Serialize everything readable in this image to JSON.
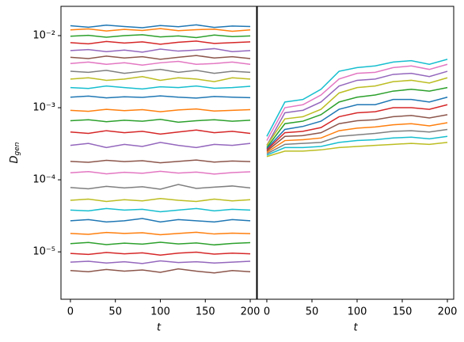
{
  "chart_data": [
    {
      "type": "line",
      "ylabel": "Dgen",
      "xlabel": "t",
      "log_y": true,
      "xlim": [
        -10.5,
        207
      ],
      "ylim": [
        2.2e-06,
        0.0255
      ],
      "xticks": [
        0,
        50,
        100,
        150,
        200
      ],
      "yticks": [
        {
          "value": 1e-05,
          "label": "10⁻⁵"
        },
        {
          "value": 0.0001,
          "label": "10⁻⁴"
        },
        {
          "value": 0.001,
          "label": "10⁻³"
        },
        {
          "value": 0.01,
          "label": "10⁻²"
        }
      ],
      "x": [
        0,
        20,
        40,
        60,
        80,
        100,
        120,
        140,
        160,
        180,
        200
      ],
      "series": [
        {
          "color": "#1f77b4",
          "values": [
            0.0137,
            0.0131,
            0.014,
            0.0134,
            0.0129,
            0.0138,
            0.0133,
            0.0141,
            0.013,
            0.0136,
            0.0134
          ]
        },
        {
          "color": "#ff7f0e",
          "values": [
            0.012,
            0.0124,
            0.0116,
            0.0122,
            0.0118,
            0.0125,
            0.0117,
            0.0121,
            0.0123,
            0.0115,
            0.012
          ]
        },
        {
          "color": "#2ca02c",
          "values": [
            0.0098,
            0.0101,
            0.0095,
            0.01,
            0.0103,
            0.0096,
            0.0099,
            0.0094,
            0.0102,
            0.0097,
            0.0099
          ]
        },
        {
          "color": "#d62728",
          "values": [
            0.008,
            0.0077,
            0.0083,
            0.0079,
            0.0082,
            0.0076,
            0.0081,
            0.0084,
            0.0078,
            0.008,
            0.0082
          ]
        },
        {
          "color": "#9467bd",
          "values": [
            0.0062,
            0.0064,
            0.006,
            0.0063,
            0.0059,
            0.0065,
            0.0061,
            0.0063,
            0.0066,
            0.006,
            0.0062
          ]
        },
        {
          "color": "#8c564b",
          "values": [
            0.005,
            0.0048,
            0.0052,
            0.0049,
            0.0051,
            0.0047,
            0.005,
            0.0053,
            0.0049,
            0.0051,
            0.0048
          ]
        },
        {
          "color": "#e377c2",
          "values": [
            0.0041,
            0.0043,
            0.004,
            0.0042,
            0.0039,
            0.0042,
            0.0044,
            0.004,
            0.0041,
            0.0043,
            0.004
          ]
        },
        {
          "color": "#7f7f7f",
          "values": [
            0.0032,
            0.0031,
            0.0033,
            0.003,
            0.0032,
            0.0034,
            0.0031,
            0.0033,
            0.003,
            0.0032,
            0.0031
          ]
        },
        {
          "color": "#bcbd22",
          "values": [
            0.0025,
            0.0026,
            0.0024,
            0.0025,
            0.0027,
            0.0024,
            0.0026,
            0.0025,
            0.0023,
            0.0026,
            0.0025
          ]
        },
        {
          "color": "#17becf",
          "values": [
            0.0019,
            0.00185,
            0.002,
            0.0019,
            0.00182,
            0.00195,
            0.0019,
            0.002,
            0.00186,
            0.0019,
            0.00198
          ]
        },
        {
          "color": "#1f77b4",
          "values": [
            0.0014,
            0.00145,
            0.00137,
            0.00142,
            0.00139,
            0.00146,
            0.0014,
            0.00136,
            0.00143,
            0.0014,
            0.00138
          ]
        },
        {
          "color": "#ff7f0e",
          "values": [
            0.00092,
            0.00089,
            0.00095,
            0.00091,
            0.00094,
            0.00088,
            0.00093,
            0.00096,
            0.0009,
            0.00092,
            0.00094
          ]
        },
        {
          "color": "#2ca02c",
          "values": [
            0.00066,
            0.00068,
            0.00064,
            0.00067,
            0.00065,
            0.00069,
            0.00063,
            0.00066,
            0.00068,
            0.00065,
            0.00067
          ]
        },
        {
          "color": "#d62728",
          "values": [
            0.00046,
            0.00044,
            0.00048,
            0.00045,
            0.00047,
            0.00043,
            0.00046,
            0.00049,
            0.00045,
            0.00047,
            0.00044
          ]
        },
        {
          "color": "#9467bd",
          "values": [
            0.0003,
            0.00032,
            0.00028,
            0.00031,
            0.00029,
            0.00033,
            0.0003,
            0.00028,
            0.00031,
            0.0003,
            0.00032
          ]
        },
        {
          "color": "#8c564b",
          "values": [
            0.00018,
            0.000175,
            0.000186,
            0.000179,
            0.000184,
            0.000172,
            0.00018,
            0.000188,
            0.000176,
            0.000182,
            0.000179
          ]
        },
        {
          "color": "#e377c2",
          "values": [
            0.000125,
            0.00013,
            0.000121,
            0.000127,
            0.000123,
            0.000131,
            0.000124,
            0.000128,
            0.00012,
            0.000126,
            0.000129
          ]
        },
        {
          "color": "#7f7f7f",
          "values": [
            7.8e-05,
            7.5e-05,
            8.1e-05,
            7.7e-05,
            8e-05,
            7.4e-05,
            8.6e-05,
            7.6e-05,
            7.9e-05,
            8.2e-05,
            7.7e-05
          ]
        },
        {
          "color": "#bcbd22",
          "values": [
            5.2e-05,
            5.4e-05,
            5e-05,
            5.3e-05,
            5.1e-05,
            5.5e-05,
            5.2e-05,
            5e-05,
            5.4e-05,
            5.1e-05,
            5.3e-05
          ]
        },
        {
          "color": "#17becf",
          "values": [
            3.8e-05,
            3.7e-05,
            4e-05,
            3.8e-05,
            3.9e-05,
            3.6e-05,
            3.8e-05,
            4e-05,
            3.7e-05,
            3.9e-05,
            3.8e-05
          ]
        },
        {
          "color": "#1f77b4",
          "values": [
            2.7e-05,
            2.8e-05,
            2.6e-05,
            2.7e-05,
            2.9e-05,
            2.6e-05,
            2.8e-05,
            2.7e-05,
            2.6e-05,
            2.8e-05,
            2.7e-05
          ]
        },
        {
          "color": "#ff7f0e",
          "values": [
            1.8e-05,
            1.75e-05,
            1.86e-05,
            1.8e-05,
            1.84e-05,
            1.73e-05,
            1.8e-05,
            1.87e-05,
            1.77e-05,
            1.82e-05,
            1.79e-05
          ]
        },
        {
          "color": "#2ca02c",
          "values": [
            1.3e-05,
            1.35e-05,
            1.26e-05,
            1.32e-05,
            1.28e-05,
            1.36e-05,
            1.29e-05,
            1.33e-05,
            1.25e-05,
            1.31e-05,
            1.34e-05
          ]
        },
        {
          "color": "#d62728",
          "values": [
            9.5e-06,
            9.2e-06,
            9.8e-06,
            9.4e-06,
            9.7e-06,
            9e-06,
            9.6e-06,
            9.9e-06,
            9.3e-06,
            9.6e-06,
            9.4e-06
          ]
        },
        {
          "color": "#9467bd",
          "values": [
            7.2e-06,
            7.4e-06,
            7e-06,
            7.3e-06,
            6.9e-06,
            7.5e-06,
            7.1e-06,
            7.3e-06,
            7e-06,
            7.2e-06,
            7.4e-06
          ]
        },
        {
          "color": "#8c564b",
          "values": [
            5.5e-06,
            5.3e-06,
            5.7e-06,
            5.4e-06,
            5.6e-06,
            5.2e-06,
            5.8e-06,
            5.4e-06,
            5.1e-06,
            5.5e-06,
            5.3e-06
          ]
        }
      ]
    },
    {
      "type": "line",
      "xlabel": "t",
      "log_y": true,
      "xlim": [
        -10.5,
        207
      ],
      "ylim": [
        2.2e-06,
        0.0255
      ],
      "xticks": [
        0,
        50,
        100,
        150,
        200
      ],
      "x": [
        0,
        20,
        40,
        60,
        80,
        100,
        120,
        140,
        160,
        180,
        200
      ],
      "series": [
        {
          "color": "#17becf",
          "values": [
            0.0004,
            0.0012,
            0.0013,
            0.0018,
            0.0032,
            0.0036,
            0.0038,
            0.0043,
            0.0045,
            0.004,
            0.0047
          ]
        },
        {
          "color": "#e377c2",
          "values": [
            0.00035,
            0.001,
            0.0011,
            0.0015,
            0.0025,
            0.003,
            0.0031,
            0.0036,
            0.0038,
            0.0034,
            0.004
          ]
        },
        {
          "color": "#9467bd",
          "values": [
            0.0003,
            0.00085,
            0.00092,
            0.0012,
            0.002,
            0.0024,
            0.0025,
            0.0029,
            0.003,
            0.0027,
            0.0032
          ]
        },
        {
          "color": "#bcbd22",
          "values": [
            0.0003,
            0.0007,
            0.00075,
            0.00095,
            0.0016,
            0.0019,
            0.002,
            0.0023,
            0.0024,
            0.0022,
            0.0026
          ]
        },
        {
          "color": "#2ca02c",
          "values": [
            0.00028,
            0.0006,
            0.00065,
            0.0008,
            0.0012,
            0.0014,
            0.0015,
            0.0017,
            0.0018,
            0.0017,
            0.0019
          ]
        },
        {
          "color": "#1f77b4",
          "values": [
            0.00027,
            0.0005,
            0.00055,
            0.00065,
            0.00095,
            0.0011,
            0.0011,
            0.0013,
            0.0013,
            0.0012,
            0.0014
          ]
        },
        {
          "color": "#d62728",
          "values": [
            0.00026,
            0.00045,
            0.00047,
            0.00053,
            0.00075,
            0.00085,
            0.00088,
            0.001,
            0.001,
            0.00095,
            0.0011
          ]
        },
        {
          "color": "#8c564b",
          "values": [
            0.00025,
            0.0004,
            0.00041,
            0.00045,
            0.0006,
            0.00066,
            0.00068,
            0.00075,
            0.00078,
            0.00072,
            0.0008
          ]
        },
        {
          "color": "#ff7f0e",
          "values": [
            0.00024,
            0.00035,
            0.00036,
            0.00038,
            0.00048,
            0.00052,
            0.00054,
            0.00058,
            0.0006,
            0.00056,
            0.00062
          ]
        },
        {
          "color": "#7f7f7f",
          "values": [
            0.00023,
            0.00031,
            0.00032,
            0.00033,
            0.0004,
            0.00042,
            0.00044,
            0.00047,
            0.00048,
            0.00046,
            0.0005
          ]
        },
        {
          "color": "#17becf",
          "values": [
            0.00022,
            0.00028,
            0.00028,
            0.00029,
            0.00033,
            0.00035,
            0.00036,
            0.00038,
            0.00039,
            0.00037,
            0.0004
          ]
        },
        {
          "color": "#bcbd22",
          "values": [
            0.00021,
            0.00025,
            0.00025,
            0.00026,
            0.00028,
            0.00029,
            0.0003,
            0.00031,
            0.00032,
            0.00031,
            0.00033
          ]
        }
      ]
    }
  ]
}
